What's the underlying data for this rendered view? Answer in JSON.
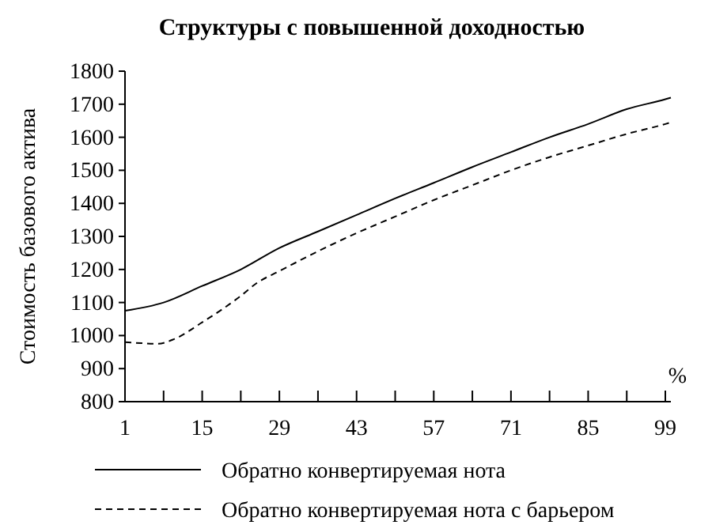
{
  "chart_data": {
    "type": "line",
    "title": "Структуры с повышенной доходностью",
    "xlabel": "%",
    "ylabel": "Стоимость базового актива",
    "xlim": [
      1,
      100
    ],
    "xticks": [
      1,
      {
        "value": 8,
        "label": null
      },
      15,
      {
        "value": 22,
        "label": null
      },
      29,
      {
        "value": 36,
        "label": null
      },
      43,
      {
        "value": 50,
        "label": null
      },
      57,
      {
        "value": 64,
        "label": null
      },
      71,
      {
        "value": 78,
        "label": null
      },
      85,
      {
        "value": 92,
        "label": null
      },
      99
    ],
    "ylim": [
      800,
      1800
    ],
    "yticks": [
      800,
      900,
      1000,
      1100,
      1200,
      1300,
      1400,
      1500,
      1600,
      1700,
      1800
    ],
    "grid": false,
    "legend": "bottom",
    "marker": "none",
    "series": [
      {
        "name": "Обратно конвертируемая нота",
        "color": "#000000",
        "line_style": "solid",
        "x": [
          1,
          8,
          15,
          22,
          29,
          36,
          43,
          50,
          57,
          64,
          71,
          78,
          85,
          92,
          99,
          100
        ],
        "values": [
          1075,
          1100,
          1150,
          1200,
          1265,
          1315,
          1365,
          1415,
          1462,
          1510,
          1555,
          1600,
          1640,
          1685,
          1715,
          1720
        ]
      },
      {
        "name": "Обратно конвертируемая нота с барьером",
        "color": "#000000",
        "line_style": "dashed",
        "x": [
          1,
          4,
          7,
          10,
          15,
          22,
          25,
          29,
          36,
          43,
          50,
          57,
          64,
          71,
          78,
          85,
          92,
          99,
          100
        ],
        "values": [
          980,
          977,
          975,
          990,
          1040,
          1120,
          1160,
          1195,
          1255,
          1310,
          1360,
          1410,
          1455,
          1500,
          1540,
          1575,
          1610,
          1640,
          1645
        ]
      }
    ]
  }
}
